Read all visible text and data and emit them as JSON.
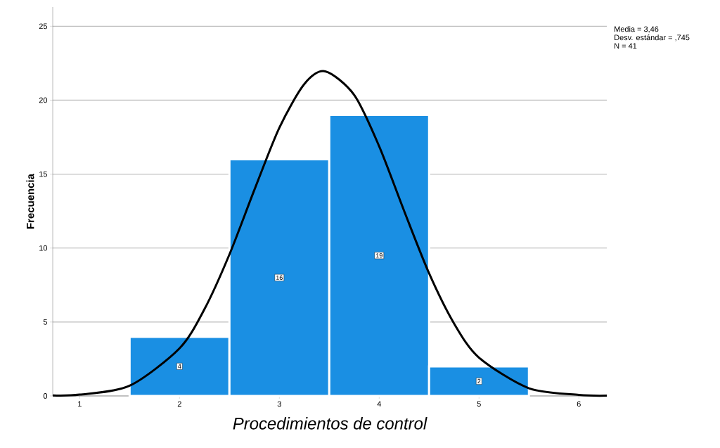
{
  "chart_data": {
    "type": "histogram",
    "xlabel": "Procedimientos de control",
    "ylabel": "Frecuencia",
    "bins": [
      1.5,
      2.5,
      3.5,
      4.5,
      5.5
    ],
    "values": [
      4,
      16,
      19,
      2
    ],
    "color": "#1a8fe3",
    "value_labels": [
      "4",
      "16",
      "19",
      "2"
    ],
    "series": [
      {
        "type": "line",
        "color": "#000000",
        "x": [
          0.73,
          1.0,
          1.5,
          2.0,
          2.25,
          2.5,
          2.75,
          3.0,
          3.25,
          3.46,
          3.75,
          4.0,
          4.25,
          4.5,
          4.75,
          5.0,
          5.5,
          6.0,
          6.28
        ],
        "values": [
          0.03,
          0.09,
          0.69,
          3.22,
          5.87,
          9.57,
          13.94,
          18.14,
          21.09,
          21.95,
          20.35,
          16.88,
          12.51,
          8.29,
          4.9,
          2.59,
          0.52,
          0.07,
          0.02
        ]
      }
    ],
    "xlim": [
      0.73,
      6.28
    ],
    "ylim": [
      0,
      26.3
    ],
    "xticks": [
      1,
      2,
      3,
      4,
      5,
      6
    ],
    "yticks": [
      0,
      5,
      10,
      15,
      20,
      25
    ],
    "grid": "y",
    "annotations": [
      "Media = 3,46",
      "Desv. estándar = ,745",
      "N = 41"
    ]
  }
}
